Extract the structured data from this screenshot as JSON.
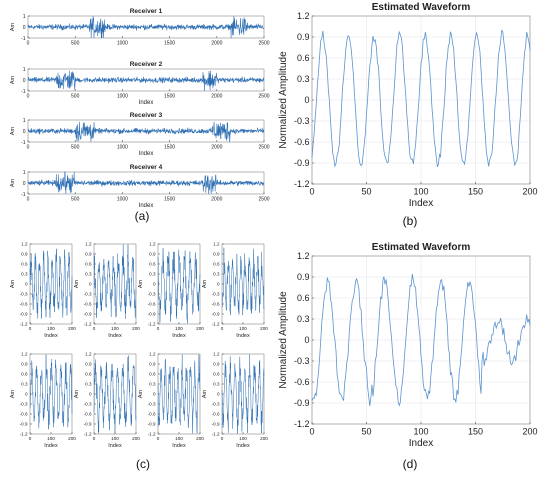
{
  "panel_labels": {
    "a": "(a)",
    "b": "(b)",
    "c": "(c)",
    "d": "(d)"
  },
  "colors": {
    "signal": "#2f6fb3",
    "signal_light": "#5b93cf",
    "grid": "#e6e6e6",
    "axis": "#555555",
    "text": "#222222"
  },
  "chart_data": [
    {
      "id": "a",
      "type": "line",
      "subplots": [
        {
          "title": "Receiver 1",
          "ylabel": "Am",
          "xlabel": "",
          "xlim": [
            0,
            2500
          ],
          "ylim": [
            -1,
            1
          ],
          "xticks": [
            0,
            500,
            1000,
            1500,
            2000,
            2500
          ],
          "yticks": [
            -1,
            0,
            1
          ],
          "bursts": [
            [
              650,
              820
            ],
            [
              2150,
              2330
            ]
          ],
          "noise_amplitude": 0.22,
          "burst_amplitude": 0.9,
          "samples": 2500
        },
        {
          "title": "Receiver 2",
          "ylabel": "Am",
          "xlabel": "Index",
          "xlim": [
            0,
            2500
          ],
          "ylim": [
            -1,
            1
          ],
          "xticks": [
            0,
            500,
            1000,
            1500,
            2000,
            2500
          ],
          "yticks": [
            -1,
            0,
            1
          ],
          "bursts": [
            [
              300,
              500
            ],
            [
              1850,
              2000
            ]
          ],
          "noise_amplitude": 0.22,
          "burst_amplitude": 0.9,
          "samples": 2500
        },
        {
          "title": "Receiver 3",
          "ylabel": "Am",
          "xlabel": "Index",
          "xlim": [
            0,
            2500
          ],
          "ylim": [
            -1,
            1
          ],
          "xticks": [
            0,
            500,
            1000,
            1500,
            2000,
            2500
          ],
          "yticks": [
            -1,
            0,
            1
          ],
          "bursts": [
            [
              500,
              700
            ],
            [
              1950,
              2150
            ]
          ],
          "noise_amplitude": 0.22,
          "burst_amplitude": 0.9,
          "samples": 2500
        },
        {
          "title": "Receiver 4",
          "ylabel": "Am",
          "xlabel": "Index",
          "xlim": [
            0,
            2500
          ],
          "ylim": [
            -1,
            1
          ],
          "xticks": [
            0,
            500,
            1000,
            1500,
            2000,
            2500
          ],
          "yticks": [
            -1,
            0,
            1
          ],
          "bursts": [
            [
              300,
              500
            ],
            [
              1850,
              2000
            ]
          ],
          "noise_amplitude": 0.22,
          "burst_amplitude": 0.9,
          "samples": 2500
        }
      ]
    },
    {
      "id": "b",
      "type": "line",
      "title": "Estimated Waveform",
      "xlabel": "Index",
      "ylabel": "Normalized Amplitude",
      "xlim": [
        0,
        200
      ],
      "ylim": [
        -1.2,
        1.2
      ],
      "xticks": [
        0,
        50,
        100,
        150,
        200
      ],
      "yticks": [
        -1.2,
        -0.9,
        -0.6,
        -0.3,
        0,
        0.3,
        0.6,
        0.9,
        1.2
      ],
      "grid": true,
      "period": 23.5,
      "amplitude": 0.92,
      "samples": 200
    },
    {
      "id": "c",
      "type": "line",
      "grid": false,
      "subplots": [
        {
          "xlabel": "Index",
          "ylabel": "Am",
          "xlim": [
            0,
            200
          ],
          "ylim": [
            -1.2,
            1.2
          ],
          "xticks": [
            0,
            100,
            200
          ],
          "yticks": [
            -1.2,
            -0.9,
            -0.6,
            -0.3,
            0,
            0.3,
            0.6,
            0.9,
            1.2
          ],
          "amplitude": 0.75
        },
        {
          "xlabel": "Index",
          "ylabel": "Am",
          "xlim": [
            0,
            200
          ],
          "ylim": [
            -1.2,
            1.2
          ],
          "xticks": [
            0,
            100,
            200
          ],
          "yticks": [
            -1.2,
            -0.9,
            -0.6,
            -0.3,
            0,
            0.3,
            0.6,
            0.9,
            1.2
          ],
          "amplitude": 0.7
        },
        {
          "xlabel": "Index",
          "ylabel": "Am",
          "xlim": [
            0,
            200
          ],
          "ylim": [
            -1.2,
            1.2
          ],
          "xticks": [
            0,
            100,
            200
          ],
          "yticks": [
            -1.2,
            -0.9,
            -0.6,
            -0.3,
            0,
            0.3,
            0.6,
            0.9,
            1.2
          ],
          "amplitude": 0.75
        },
        {
          "xlabel": "Index",
          "ylabel": "Am",
          "xlim": [
            0,
            200
          ],
          "ylim": [
            -1.2,
            1.2
          ],
          "xticks": [
            0,
            100,
            200
          ],
          "yticks": [
            -1.2,
            -0.9,
            -0.6,
            -0.3,
            0,
            0.3,
            0.6,
            0.9,
            1.2
          ],
          "amplitude": 0.65
        },
        {
          "xlabel": "Index",
          "ylabel": "Am",
          "xlim": [
            0,
            200
          ],
          "ylim": [
            -1.2,
            1.2
          ],
          "xticks": [
            0,
            100,
            200
          ],
          "yticks": [
            -1.2,
            -0.9,
            -0.6,
            -0.3,
            0,
            0.3,
            0.6,
            0.9,
            1.2
          ],
          "amplitude": 0.8
        },
        {
          "xlabel": "Index",
          "ylabel": "Am",
          "xlim": [
            0,
            200
          ],
          "ylim": [
            -1.2,
            1.2
          ],
          "xticks": [
            0,
            100,
            200
          ],
          "yticks": [
            -1.2,
            -0.9,
            -0.6,
            -0.3,
            0,
            0.3,
            0.6,
            0.9,
            1.2
          ],
          "amplitude": 0.8
        },
        {
          "xlabel": "Index",
          "ylabel": "Am",
          "xlim": [
            0,
            200
          ],
          "ylim": [
            -1.2,
            1.2
          ],
          "xticks": [
            0,
            100,
            200
          ],
          "yticks": [
            -1.2,
            -0.9,
            -0.6,
            -0.3,
            0,
            0.3,
            0.6,
            0.9,
            1.2
          ],
          "amplitude": 0.8
        },
        {
          "xlabel": "Index",
          "ylabel": "Am",
          "xlim": [
            0,
            200
          ],
          "ylim": [
            -1.2,
            1.2
          ],
          "xticks": [
            0,
            100,
            200
          ],
          "yticks": [
            -1.2,
            -0.9,
            -0.6,
            -0.3,
            0,
            0.3,
            0.6,
            0.9,
            1.2
          ],
          "amplitude": 0.8
        }
      ]
    },
    {
      "id": "d",
      "type": "line",
      "title": "Estimated Waveform",
      "xlabel": "Index",
      "ylabel": "Normalized Amplitude",
      "xlim": [
        0,
        200
      ],
      "ylim": [
        -1.2,
        1.2
      ],
      "xticks": [
        0,
        50,
        100,
        150,
        200
      ],
      "yticks": [
        -1.2,
        -0.9,
        -0.6,
        -0.3,
        0,
        0.3,
        0.6,
        0.9,
        1.2
      ],
      "grid": true,
      "period": 26,
      "amplitude": 0.85,
      "decay_after": 155,
      "samples": 200
    }
  ]
}
